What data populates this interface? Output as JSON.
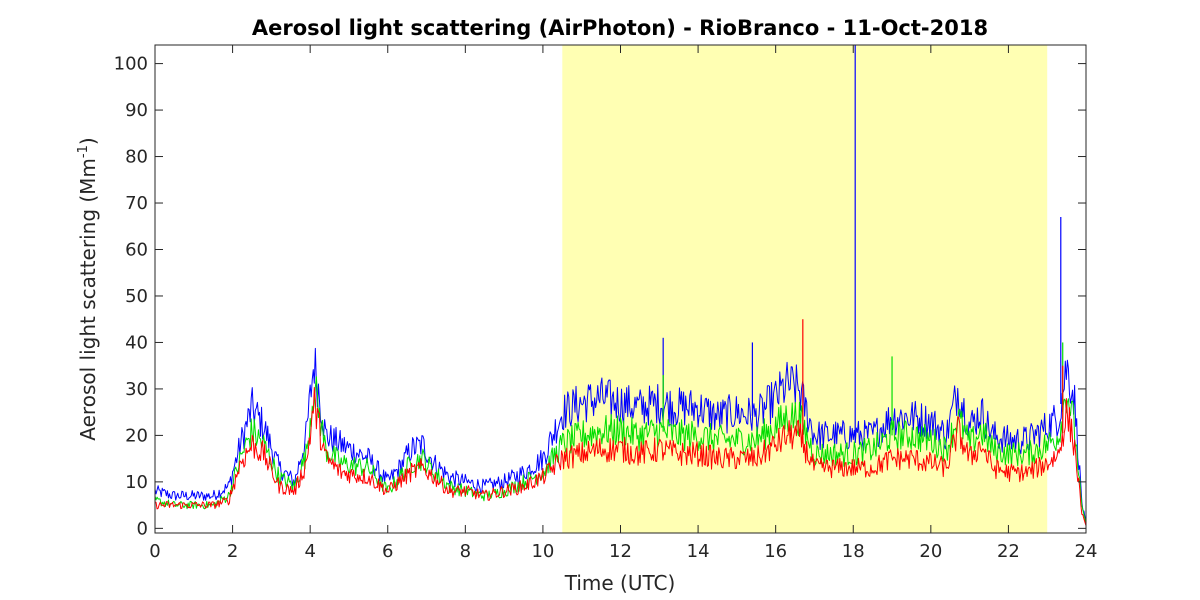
{
  "chart_data": {
    "type": "line",
    "title": "Aerosol light scattering (AirPhoton) - RioBranco - 11-Oct-2018",
    "xlabel": "Time (UTC)",
    "ylabel": "Aerosol light scattering (Mm",
    "ylabel_sup": "-1",
    "ylabel_close": ")",
    "xlim": [
      0,
      24
    ],
    "ylim": [
      -1,
      104
    ],
    "xticks": [
      0,
      2,
      4,
      6,
      8,
      10,
      12,
      14,
      16,
      18,
      20,
      22,
      24
    ],
    "yticks": [
      0,
      10,
      20,
      30,
      40,
      50,
      60,
      70,
      80,
      90,
      100
    ],
    "grid": false,
    "legend": "none",
    "highlight": {
      "x_start": 10.5,
      "x_end": 23.0,
      "color": "#ffffb3"
    },
    "x": [
      0,
      0.5,
      1,
      1.5,
      1.9,
      2.2,
      2.5,
      2.8,
      3.2,
      3.6,
      3.9,
      4.1,
      4.4,
      4.8,
      5.5,
      6.0,
      6.3,
      6.6,
      6.9,
      7.2,
      7.6,
      8.0,
      8.5,
      9.0,
      9.5,
      10.0,
      10.5,
      11.0,
      11.5,
      12.0,
      12.5,
      13.0,
      13.5,
      14.0,
      14.5,
      15.0,
      15.5,
      16.0,
      16.3,
      16.6,
      17.0,
      17.5,
      18.0,
      18.5,
      19.0,
      19.5,
      20.0,
      20.4,
      20.7,
      21.0,
      21.3,
      21.6,
      22.0,
      22.5,
      23.0,
      23.3,
      23.5,
      23.7,
      23.9,
      24.0
    ],
    "series": [
      {
        "color": "#0000ff",
        "values": [
          8,
          7,
          7,
          7,
          9,
          18,
          26,
          22,
          13,
          10,
          20,
          36,
          20,
          18,
          15,
          10,
          13,
          17,
          18,
          14,
          11,
          10,
          9,
          10,
          12,
          15,
          25,
          27,
          28,
          27,
          26,
          27,
          26,
          26,
          24,
          25,
          24,
          28,
          31,
          30,
          20,
          20,
          20,
          20,
          24,
          24,
          23,
          20,
          30,
          22,
          25,
          20,
          19,
          19,
          22,
          24,
          35,
          28,
          5,
          1
        ],
        "spikes": [
          [
            13.1,
            41
          ],
          [
            15.4,
            40
          ],
          [
            18.05,
            104
          ],
          [
            23.35,
            67
          ]
        ]
      },
      {
        "color": "#00dd00",
        "values": [
          6,
          5,
          5,
          5,
          7,
          15,
          21,
          18,
          11,
          9,
          16,
          31,
          17,
          14,
          13,
          8,
          11,
          14,
          15,
          12,
          9,
          8,
          7,
          8,
          10,
          12,
          18,
          20,
          21,
          21,
          20,
          21,
          20,
          20,
          19,
          19,
          19,
          22,
          24,
          24,
          16,
          16,
          16,
          17,
          20,
          20,
          19,
          17,
          24,
          18,
          21,
          17,
          16,
          16,
          18,
          20,
          30,
          22,
          4,
          1
        ],
        "spikes": [
          [
            13.1,
            33
          ],
          [
            19.0,
            37
          ],
          [
            23.4,
            40
          ]
        ]
      },
      {
        "color": "#ff0000",
        "values": [
          5,
          5,
          5,
          5,
          6,
          14,
          18,
          16,
          9,
          8,
          14,
          27,
          15,
          12,
          11,
          8,
          10,
          12,
          13,
          11,
          8,
          8,
          7,
          8,
          9,
          11,
          15,
          16,
          17,
          17,
          16,
          17,
          16,
          16,
          15,
          15,
          15,
          18,
          20,
          20,
          13,
          13,
          13,
          13,
          15,
          15,
          14,
          13,
          21,
          15,
          18,
          13,
          12,
          12,
          14,
          16,
          25,
          18,
          3,
          0
        ],
        "spikes": [
          [
            16.7,
            45
          ],
          [
            23.4,
            35
          ]
        ]
      }
    ]
  }
}
